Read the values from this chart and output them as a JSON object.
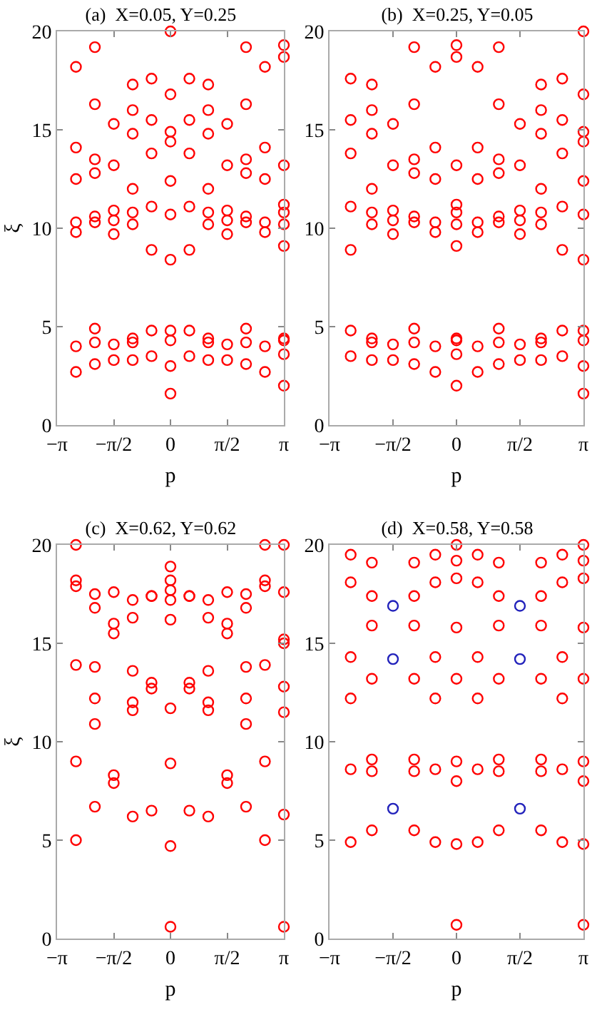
{
  "chart_data": [
    {
      "type": "scatter",
      "title": "(a)  X=0.05, Y=0.25",
      "xlabel": "p",
      "ylabel": "ξ",
      "xlim": [
        -3.142,
        3.142
      ],
      "ylim": [
        0,
        20
      ],
      "marker": "circle",
      "grid": false,
      "xticks": [
        {
          "value": -3.142,
          "label": "−π"
        },
        {
          "value": -1.571,
          "label": "−π/2"
        },
        {
          "value": 0,
          "label": "0"
        },
        {
          "value": 1.571,
          "label": "π/2"
        },
        {
          "value": 3.142,
          "label": "π"
        }
      ],
      "yticks": [
        0,
        5,
        10,
        15,
        20
      ],
      "series": [
        {
          "color": "#ff0000",
          "x": [
            -2.618,
            -2.618,
            -2.618,
            -2.618,
            -2.618,
            -2.618,
            -2.618,
            -2.094,
            -2.094,
            -2.094,
            -2.094,
            -2.094,
            -2.094,
            -2.094,
            -2.094,
            -2.094,
            -1.571,
            -1.571,
            -1.571,
            -1.571,
            -1.571,
            -1.571,
            -1.571,
            -1.047,
            -1.047,
            -1.047,
            -1.047,
            -1.047,
            -1.047,
            -1.047,
            -1.047,
            -1.047,
            -0.524,
            -0.524,
            -0.524,
            -0.524,
            -0.524,
            -0.524,
            -0.524,
            0,
            0,
            0,
            0,
            0,
            0,
            0,
            0,
            0,
            0,
            0,
            0.524,
            0.524,
            0.524,
            0.524,
            0.524,
            0.524,
            0.524,
            1.047,
            1.047,
            1.047,
            1.047,
            1.047,
            1.047,
            1.047,
            1.047,
            1.047,
            1.571,
            1.571,
            1.571,
            1.571,
            1.571,
            1.571,
            1.571,
            2.094,
            2.094,
            2.094,
            2.094,
            2.094,
            2.094,
            2.094,
            2.094,
            2.094,
            2.618,
            2.618,
            2.618,
            2.618,
            2.618,
            2.618,
            2.618,
            3.142,
            3.142,
            3.142,
            3.142,
            3.142,
            3.142,
            3.142,
            3.142,
            3.142,
            3.142,
            3.142
          ],
          "values": [
            18.2,
            14.1,
            12.5,
            10.3,
            9.8,
            4.0,
            2.7,
            19.2,
            16.3,
            13.5,
            12.8,
            10.6,
            10.3,
            4.9,
            4.2,
            3.1,
            15.3,
            13.2,
            10.9,
            10.4,
            9.7,
            4.1,
            3.3,
            17.3,
            16.0,
            14.8,
            12.0,
            10.8,
            10.2,
            4.4,
            4.2,
            3.3,
            17.6,
            15.5,
            13.8,
            11.1,
            8.9,
            4.8,
            3.5,
            20.0,
            16.8,
            14.9,
            14.4,
            12.4,
            10.7,
            8.4,
            4.8,
            4.3,
            3.0,
            1.6,
            17.6,
            15.5,
            13.8,
            11.1,
            8.9,
            4.8,
            3.5,
            17.3,
            16.0,
            14.8,
            12.0,
            10.8,
            10.2,
            4.4,
            4.2,
            3.3,
            15.3,
            13.2,
            10.9,
            10.4,
            9.7,
            4.1,
            3.3,
            19.2,
            16.3,
            13.5,
            12.8,
            10.6,
            10.3,
            4.9,
            4.2,
            3.1,
            18.2,
            14.1,
            12.5,
            10.3,
            9.8,
            4.0,
            2.7,
            19.3,
            18.7,
            13.2,
            11.2,
            10.8,
            10.2,
            9.1,
            4.4,
            4.3,
            3.6,
            2.0
          ]
        }
      ]
    },
    {
      "type": "scatter",
      "title": "(b)  X=0.25, Y=0.05",
      "xlabel": "p",
      "xlim": [
        -3.142,
        3.142
      ],
      "ylim": [
        0,
        20
      ],
      "marker": "circle",
      "grid": false,
      "xticks": [
        {
          "value": -3.142,
          "label": "−π"
        },
        {
          "value": -1.571,
          "label": "−π/2"
        },
        {
          "value": 0,
          "label": "0"
        },
        {
          "value": 1.571,
          "label": "π/2"
        },
        {
          "value": 3.142,
          "label": "π"
        }
      ],
      "yticks": [
        0,
        5,
        10,
        15,
        20
      ],
      "series": [
        {
          "color": "#ff0000",
          "x": [
            -2.618,
            -2.618,
            -2.618,
            -2.618,
            -2.618,
            -2.618,
            -2.618,
            -2.094,
            -2.094,
            -2.094,
            -2.094,
            -2.094,
            -2.094,
            -2.094,
            -2.094,
            -2.094,
            -1.571,
            -1.571,
            -1.571,
            -1.571,
            -1.571,
            -1.571,
            -1.571,
            -1.047,
            -1.047,
            -1.047,
            -1.047,
            -1.047,
            -1.047,
            -1.047,
            -1.047,
            -1.047,
            -0.524,
            -0.524,
            -0.524,
            -0.524,
            -0.524,
            -0.524,
            -0.524,
            0,
            0,
            0,
            0,
            0,
            0,
            0,
            0,
            0,
            0,
            0,
            0.524,
            0.524,
            0.524,
            0.524,
            0.524,
            0.524,
            0.524,
            1.047,
            1.047,
            1.047,
            1.047,
            1.047,
            1.047,
            1.047,
            1.047,
            1.047,
            1.571,
            1.571,
            1.571,
            1.571,
            1.571,
            1.571,
            1.571,
            2.094,
            2.094,
            2.094,
            2.094,
            2.094,
            2.094,
            2.094,
            2.094,
            2.094,
            2.618,
            2.618,
            2.618,
            2.618,
            2.618,
            2.618,
            2.618,
            3.142,
            3.142,
            3.142,
            3.142,
            3.142,
            3.142,
            3.142,
            3.142,
            3.142,
            3.142,
            3.142
          ],
          "values": [
            17.6,
            15.5,
            13.8,
            11.1,
            8.9,
            4.8,
            3.5,
            17.3,
            16.0,
            14.8,
            12.0,
            10.8,
            10.2,
            4.4,
            4.2,
            3.3,
            15.3,
            13.2,
            10.9,
            10.4,
            9.7,
            4.1,
            3.3,
            19.2,
            16.3,
            13.5,
            12.8,
            10.6,
            10.3,
            4.9,
            4.2,
            3.1,
            18.2,
            14.1,
            12.5,
            10.3,
            9.8,
            4.0,
            2.7,
            19.3,
            18.7,
            13.2,
            11.2,
            10.8,
            10.2,
            9.1,
            4.4,
            4.3,
            3.6,
            2.0,
            18.2,
            14.1,
            12.5,
            10.3,
            9.8,
            4.0,
            2.7,
            19.2,
            16.3,
            13.5,
            12.8,
            10.6,
            10.3,
            4.9,
            4.2,
            3.1,
            15.3,
            13.2,
            10.9,
            10.4,
            9.7,
            4.1,
            3.3,
            17.3,
            16.0,
            14.8,
            12.0,
            10.8,
            10.2,
            4.4,
            4.2,
            3.3,
            17.6,
            15.5,
            13.8,
            11.1,
            8.9,
            4.8,
            3.5,
            20.0,
            16.8,
            14.9,
            14.4,
            12.4,
            10.7,
            8.4,
            4.8,
            4.3,
            3.0,
            1.6
          ]
        }
      ]
    },
    {
      "type": "scatter",
      "title": "(c)  X=0.62, Y=0.62",
      "xlabel": "p",
      "ylabel": "ξ",
      "xlim": [
        -3.142,
        3.142
      ],
      "ylim": [
        0,
        20
      ],
      "marker": "circle",
      "grid": false,
      "xticks": [
        {
          "value": -3.142,
          "label": "−π"
        },
        {
          "value": -1.571,
          "label": "−π/2"
        },
        {
          "value": 0,
          "label": "0"
        },
        {
          "value": 1.571,
          "label": "π/2"
        },
        {
          "value": 3.142,
          "label": "π"
        }
      ],
      "yticks": [
        0,
        5,
        10,
        15,
        20
      ],
      "series": [
        {
          "color": "#ff0000",
          "x": [
            -2.618,
            -2.618,
            -2.618,
            -2.618,
            -2.618,
            -2.618,
            -2.094,
            -2.094,
            -2.094,
            -2.094,
            -2.094,
            -2.094,
            -1.571,
            -1.571,
            -1.571,
            -1.571,
            -1.571,
            -1.047,
            -1.047,
            -1.047,
            -1.047,
            -1.047,
            -1.047,
            -0.524,
            -0.524,
            -0.524,
            -0.524,
            -0.524,
            0,
            0,
            0,
            0,
            0,
            0,
            0,
            0,
            0,
            0.524,
            0.524,
            0.524,
            0.524,
            0.524,
            1.047,
            1.047,
            1.047,
            1.047,
            1.047,
            1.047,
            1.571,
            1.571,
            1.571,
            1.571,
            1.571,
            2.094,
            2.094,
            2.094,
            2.094,
            2.094,
            2.094,
            2.618,
            2.618,
            2.618,
            2.618,
            2.618,
            2.618,
            3.142,
            3.142,
            3.142,
            3.142,
            3.142,
            3.142,
            3.142,
            3.142
          ],
          "values": [
            20.0,
            18.2,
            17.9,
            13.9,
            9.0,
            5.0,
            17.5,
            16.8,
            13.8,
            12.2,
            10.9,
            6.7,
            17.6,
            16.0,
            15.5,
            8.3,
            7.9,
            17.2,
            16.3,
            13.6,
            12.0,
            11.6,
            6.2,
            17.4,
            17.4,
            13.0,
            12.7,
            6.5,
            18.9,
            18.2,
            17.7,
            17.2,
            16.2,
            11.7,
            8.9,
            4.7,
            0.6,
            17.4,
            17.4,
            13.0,
            12.7,
            6.5,
            17.2,
            16.3,
            13.6,
            12.0,
            11.6,
            6.2,
            17.6,
            16.0,
            15.5,
            8.3,
            7.9,
            17.5,
            16.8,
            13.8,
            12.2,
            10.9,
            6.7,
            20.0,
            18.2,
            17.9,
            13.9,
            9.0,
            5.0,
            20.0,
            17.6,
            15.2,
            15.0,
            12.8,
            11.5,
            6.3,
            0.6
          ]
        }
      ]
    },
    {
      "type": "scatter",
      "title": "(d)  X=0.58, Y=0.58",
      "xlabel": "p",
      "xlim": [
        -3.142,
        3.142
      ],
      "ylim": [
        0,
        20
      ],
      "marker": "circle",
      "grid": false,
      "xticks": [
        {
          "value": -3.142,
          "label": "−π"
        },
        {
          "value": -1.571,
          "label": "−π/2"
        },
        {
          "value": 0,
          "label": "0"
        },
        {
          "value": 1.571,
          "label": "π/2"
        },
        {
          "value": 3.142,
          "label": "π"
        }
      ],
      "yticks": [
        0,
        5,
        10,
        15,
        20
      ],
      "series": [
        {
          "color": "#ff0000",
          "x": [
            -2.618,
            -2.618,
            -2.618,
            -2.618,
            -2.618,
            -2.618,
            -2.094,
            -2.094,
            -2.094,
            -2.094,
            -2.094,
            -2.094,
            -2.094,
            -1.047,
            -1.047,
            -1.047,
            -1.047,
            -1.047,
            -1.047,
            -1.047,
            -0.524,
            -0.524,
            -0.524,
            -0.524,
            -0.524,
            -0.524,
            0,
            0,
            0,
            0,
            0,
            0,
            0,
            0,
            0,
            0.524,
            0.524,
            0.524,
            0.524,
            0.524,
            0.524,
            1.047,
            1.047,
            1.047,
            1.047,
            1.047,
            1.047,
            1.047,
            2.094,
            2.094,
            2.094,
            2.094,
            2.094,
            2.094,
            2.094,
            2.618,
            2.618,
            2.618,
            2.618,
            2.618,
            2.618,
            3.142,
            3.142,
            3.142,
            3.142,
            3.142,
            3.142,
            3.142,
            3.142,
            3.142
          ],
          "values": [
            19.5,
            18.1,
            14.3,
            12.2,
            8.6,
            4.9,
            19.1,
            17.4,
            15.9,
            13.2,
            9.1,
            8.5,
            5.5,
            19.1,
            17.4,
            15.9,
            13.2,
            9.1,
            8.5,
            5.5,
            19.5,
            18.1,
            14.3,
            12.2,
            8.6,
            4.9,
            20.0,
            19.2,
            18.3,
            15.8,
            13.2,
            9.0,
            8.0,
            4.8,
            0.7,
            19.5,
            18.1,
            14.3,
            12.2,
            8.6,
            4.9,
            19.1,
            17.4,
            15.9,
            13.2,
            9.1,
            8.5,
            5.5,
            19.1,
            17.4,
            15.9,
            13.2,
            9.1,
            8.5,
            5.5,
            19.5,
            18.1,
            14.3,
            12.2,
            8.6,
            4.9,
            20.0,
            19.2,
            18.3,
            15.8,
            13.2,
            9.0,
            8.0,
            4.8,
            0.7
          ]
        },
        {
          "color": "#2222bb",
          "x": [
            -1.571,
            -1.571,
            -1.571,
            1.571,
            1.571,
            1.571
          ],
          "values": [
            16.9,
            14.2,
            6.6,
            16.9,
            14.2,
            6.6
          ]
        }
      ]
    }
  ]
}
